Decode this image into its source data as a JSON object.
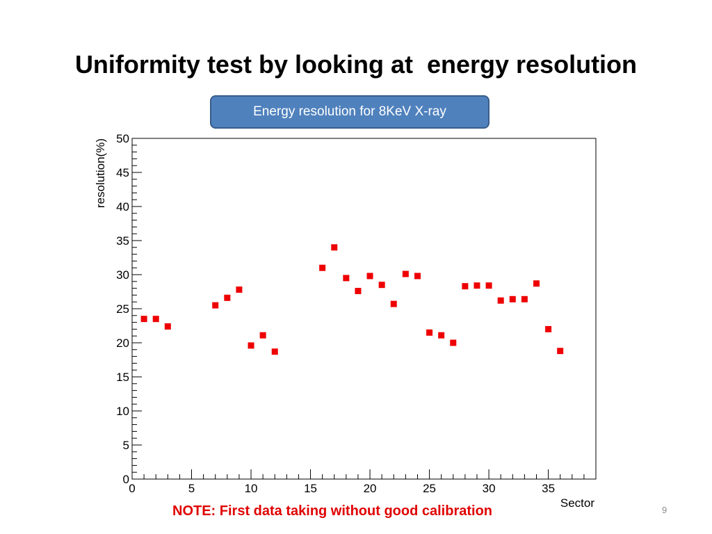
{
  "slide": {
    "title": "Uniformity test by looking at  energy resolution",
    "caption": "Energy resolution for 8KeV X-ray",
    "note": "NOTE: First data taking without good calibration",
    "page_number": "9"
  },
  "colors": {
    "marker": "#ee0000",
    "caption_fill": "#4f81bd",
    "caption_border": "#385d8a",
    "note_text": "#e00000"
  },
  "chart_data": {
    "type": "scatter",
    "xlabel": "Sector",
    "ylabel": "resolution(%)",
    "xlim": [
      0,
      39
    ],
    "ylim": [
      0,
      50
    ],
    "xticks": [
      0,
      5,
      10,
      15,
      20,
      25,
      30,
      35
    ],
    "yticks": [
      0,
      5,
      10,
      15,
      20,
      25,
      30,
      35,
      40,
      45,
      50
    ],
    "grid": false,
    "x": [
      1,
      2,
      3,
      7,
      8,
      9,
      10,
      11,
      12,
      16,
      17,
      18,
      19,
      20,
      21,
      22,
      23,
      24,
      25,
      26,
      27,
      28,
      29,
      30,
      31,
      32,
      33,
      34,
      35,
      36
    ],
    "y": [
      23.5,
      23.5,
      22.4,
      25.5,
      26.6,
      27.8,
      19.6,
      21.1,
      18.7,
      31.0,
      34.0,
      29.5,
      27.6,
      29.8,
      28.5,
      25.7,
      30.1,
      29.8,
      21.5,
      21.1,
      20.0,
      28.3,
      28.4,
      28.4,
      26.2,
      26.4,
      26.4,
      28.7,
      22.0,
      18.8
    ]
  }
}
